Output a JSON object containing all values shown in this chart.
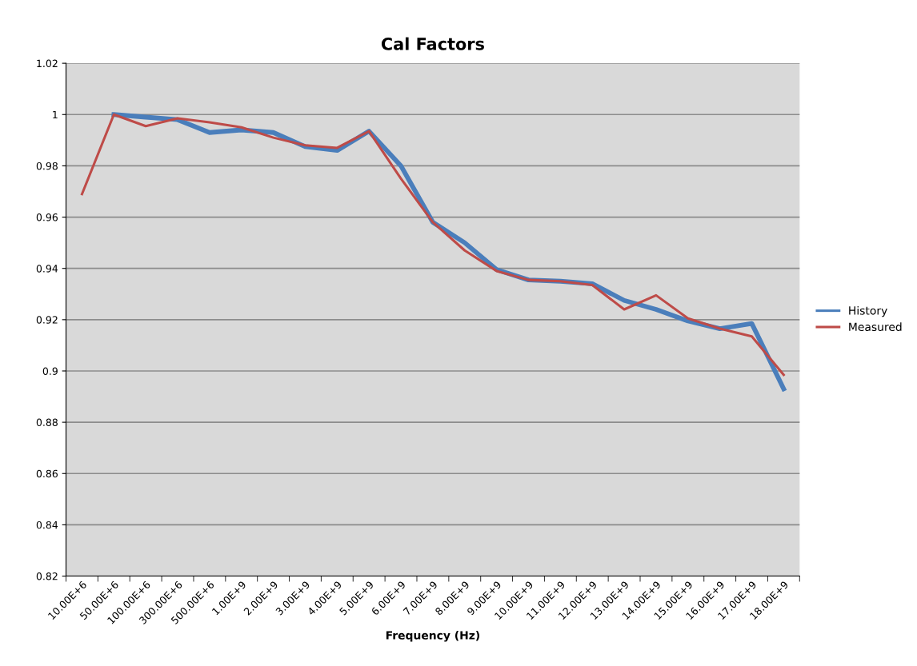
{
  "chart_data": {
    "type": "line",
    "title": "Cal Factors",
    "xlabel": "Frequency (Hz)",
    "categories": [
      "10.00E+6",
      "50.00E+6",
      "100.00E+6",
      "300.00E+6",
      "500.00E+6",
      "1.00E+9",
      "2.00E+9",
      "3.00E+9",
      "4.00E+9",
      "5.00E+9",
      "6.00E+9",
      "7.00E+9",
      "8.00E+9",
      "9.00E+9",
      "10.00E+9",
      "11.00E+9",
      "12.00E+9",
      "13.00E+9",
      "14.00E+9",
      "15.00E+9",
      "16.00E+9",
      "17.00E+9",
      "18.00E+9"
    ],
    "series": [
      {
        "name": "History",
        "color": "#4a7ebb",
        "values": [
          null,
          1.0,
          0.999,
          0.998,
          0.993,
          0.994,
          0.993,
          0.9875,
          0.986,
          0.9935,
          0.98,
          0.958,
          0.95,
          0.9395,
          0.9355,
          0.935,
          0.934,
          0.9275,
          0.924,
          0.9195,
          0.9165,
          0.9185,
          0.893
        ]
      },
      {
        "name": "Measured",
        "color": "#be4b48",
        "values": [
          0.969,
          1.0,
          0.9955,
          0.9985,
          0.997,
          0.995,
          0.991,
          0.988,
          0.987,
          0.9935,
          0.975,
          0.958,
          0.947,
          0.939,
          0.9355,
          0.935,
          0.9335,
          0.924,
          0.9295,
          0.9205,
          0.9165,
          0.9135,
          0.8985
        ]
      }
    ],
    "ylim": [
      0.82,
      1.02
    ],
    "yticks": [
      {
        "value": 0.82,
        "label": "0.82"
      },
      {
        "value": 0.84,
        "label": "0.84"
      },
      {
        "value": 0.86,
        "label": "0.86"
      },
      {
        "value": 0.88,
        "label": "0.88"
      },
      {
        "value": 0.9,
        "label": "0.9"
      },
      {
        "value": 0.92,
        "label": "0.92"
      },
      {
        "value": 0.94,
        "label": "0.94"
      },
      {
        "value": 0.96,
        "label": "0.96"
      },
      {
        "value": 0.98,
        "label": "0.98"
      },
      {
        "value": 1.0,
        "label": "1"
      },
      {
        "value": 1.02,
        "label": "1.02"
      }
    ],
    "grid": "y",
    "legend": "right",
    "marker": "none",
    "line_style": "solid"
  }
}
